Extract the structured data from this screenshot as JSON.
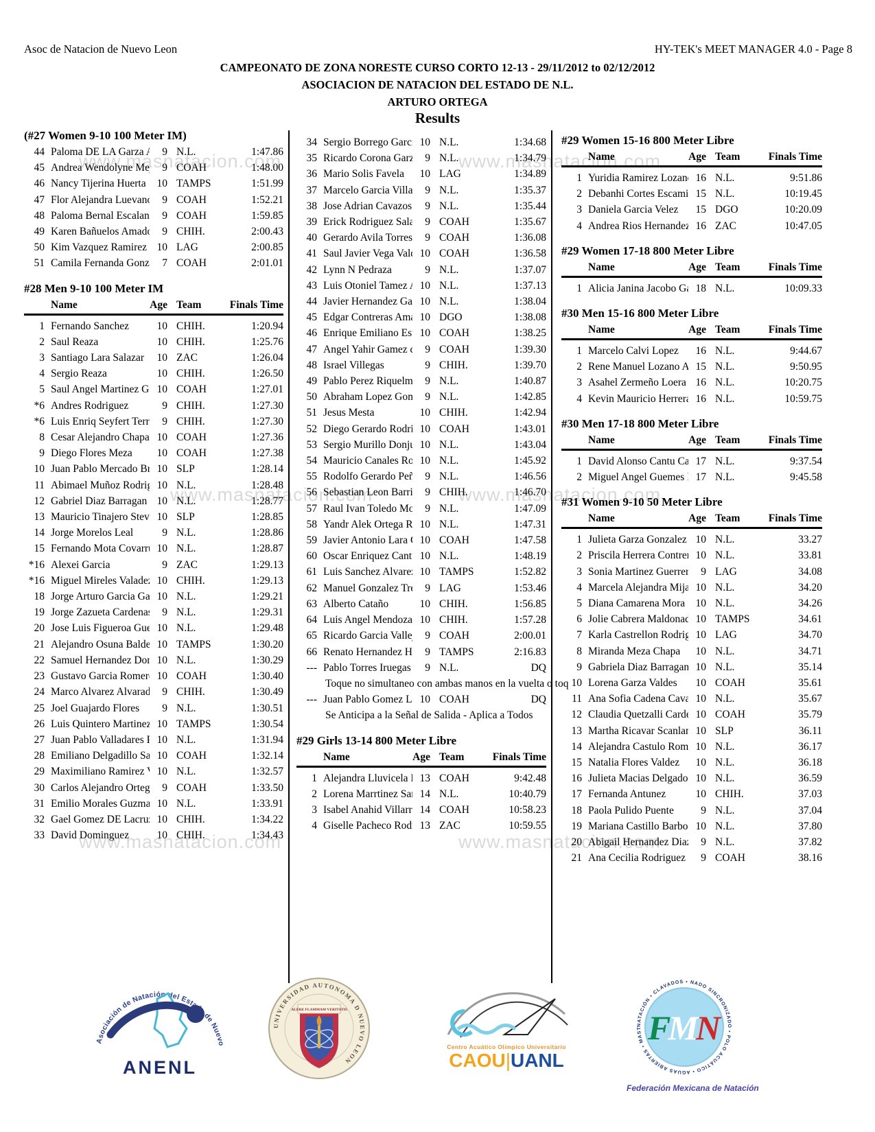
{
  "page": {
    "header_left": "Asoc de Natacion de Nuevo Leon",
    "header_right": "HY-TEK's MEET MANAGER 4.0 - Page 8",
    "title1": "CAMPEONATO DE ZONA NORESTE CURSO CORTO 12-13 - 29/11/2012 to 02/12/2012",
    "title2": "ASOCIACION DE NATACION DEL ESTADO DE N.L.",
    "title3": "ARTURO ORTEGA",
    "results_label": "Results"
  },
  "watermark": "www.masnatacion.com",
  "table_headers": {
    "name": "Name",
    "age": "Age",
    "team": "Team",
    "finals": "Finals Time"
  },
  "col1": {
    "event27_title": "(#27 Women 9-10 100 Meter IM)",
    "event27_rows": [
      [
        "44",
        "Paloma DE LA Garza Ag",
        "9",
        "N.L.",
        "1:47.86"
      ],
      [
        "45",
        "Andrea Wendolyne Mejo",
        "9",
        "COAH",
        "1:48.00"
      ],
      [
        "46",
        "Nancy Tijerina Huerta",
        "10",
        "TAMPS",
        "1:51.99"
      ],
      [
        "47",
        "Flor Alejandra Luevano F",
        "9",
        "COAH",
        "1:52.21"
      ],
      [
        "48",
        "Paloma Bernal Escalante",
        "9",
        "COAH",
        "1:59.85"
      ],
      [
        "49",
        "Karen Bañuelos Amador",
        "9",
        "CHIH.",
        "2:00.43"
      ],
      [
        "50",
        "Kim Vazquez Ramirez",
        "10",
        "LAG",
        "2:00.85"
      ],
      [
        "51",
        "Camila Fernanda Gonzale",
        "7",
        "COAH",
        "2:01.01"
      ]
    ],
    "event28_title": "#28 Men 9-10 100 Meter IM",
    "event28_rows": [
      [
        "1",
        "Fernando Sanchez",
        "10",
        "CHIH.",
        "1:20.94"
      ],
      [
        "2",
        "Saul Reaza",
        "10",
        "CHIH.",
        "1:25.76"
      ],
      [
        "3",
        "Santiago Lara Salazar",
        "10",
        "ZAC",
        "1:26.04"
      ],
      [
        "4",
        "Sergio Reaza",
        "10",
        "CHIH.",
        "1:26.50"
      ],
      [
        "5",
        "Saul Angel Martinez Gue",
        "10",
        "COAH",
        "1:27.01"
      ],
      [
        "*6",
        "Andres Rodriguez",
        "9",
        "CHIH.",
        "1:27.30"
      ],
      [
        "*6",
        "Luis Enriq Seyfert Terraz",
        "9",
        "CHIH.",
        "1:27.30"
      ],
      [
        "8",
        "Cesar Alejandro Chapa B",
        "10",
        "COAH",
        "1:27.36"
      ],
      [
        "9",
        "Diego Flores Meza",
        "10",
        "COAH",
        "1:27.38"
      ],
      [
        "10",
        "Juan Pablo Mercado Brio",
        "10",
        "SLP",
        "1:28.14"
      ],
      [
        "11",
        "Abimael Muñoz Rodrigu",
        "10",
        "N.L.",
        "1:28.48"
      ],
      [
        "12",
        "Gabriel Diaz Barragan",
        "10",
        "N.L.",
        "1:28.77"
      ],
      [
        "13",
        "Mauricio Tinajero Steven",
        "10",
        "SLP",
        "1:28.85"
      ],
      [
        "14",
        "Jorge Morelos Leal",
        "9",
        "N.L.",
        "1:28.86"
      ],
      [
        "15",
        "Fernando Mota Covarrub",
        "10",
        "N.L.",
        "1:28.87"
      ],
      [
        "*16",
        "Alexei Garcia",
        "9",
        "ZAC",
        "1:29.13"
      ],
      [
        "*16",
        "Miguel Mireles Valadez",
        "10",
        "CHIH.",
        "1:29.13"
      ],
      [
        "18",
        "Jorge Arturo Garcia Gaun",
        "10",
        "N.L.",
        "1:29.21"
      ],
      [
        "19",
        "Jorge Zazueta Cardenas",
        "9",
        "N.L.",
        "1:29.31"
      ],
      [
        "20",
        "Jose Luis Figueroa Gueva",
        "10",
        "N.L.",
        "1:29.48"
      ],
      [
        "21",
        "Alejandro Osuna Baldera",
        "10",
        "TAMPS",
        "1:30.20"
      ],
      [
        "22",
        "Samuel Hernandez Doran",
        "10",
        "N.L.",
        "1:30.29"
      ],
      [
        "23",
        "Gustavo Garcia Romero",
        "10",
        "COAH",
        "1:30.40"
      ],
      [
        "24",
        "Marco Alvarez Alvarado",
        "9",
        "CHIH.",
        "1:30.49"
      ],
      [
        "25",
        "Joel Guajardo Flores",
        "9",
        "N.L.",
        "1:30.51"
      ],
      [
        "26",
        "Luis Quintero Martinez",
        "10",
        "TAMPS",
        "1:30.54"
      ],
      [
        "27",
        "Juan Pablo Valladares Piñ",
        "10",
        "N.L.",
        "1:31.94"
      ],
      [
        "28",
        "Emiliano Delgadillo Sala",
        "10",
        "COAH",
        "1:32.14"
      ],
      [
        "29",
        "Maximiliano Ramirez Vil",
        "10",
        "N.L.",
        "1:32.57"
      ],
      [
        "30",
        "Carlos Alejandro Ortega",
        "9",
        "COAH",
        "1:33.50"
      ],
      [
        "31",
        "Emilio Morales Guzman",
        "10",
        "N.L.",
        "1:33.91"
      ],
      [
        "32",
        "Gael Gomez DE Lacruz",
        "10",
        "CHIH.",
        "1:34.22"
      ],
      [
        "33",
        "David Dominguez",
        "10",
        "CHIH.",
        "1:34.43"
      ]
    ]
  },
  "col2": {
    "event28_cont_rows": [
      [
        "34",
        "Sergio Borrego Garcia",
        "10",
        "N.L.",
        "1:34.68"
      ],
      [
        "35",
        "Ricardo Corona Garza",
        "9",
        "N.L.",
        "1:34.79"
      ],
      [
        "36",
        "Mario Solis Favela",
        "10",
        "LAG",
        "1:34.89"
      ],
      [
        "37",
        "Marcelo Garcia Villanuev",
        "9",
        "N.L.",
        "1:35.37"
      ],
      [
        "38",
        "Jose Adrian Cavazos Lop",
        "9",
        "N.L.",
        "1:35.44"
      ],
      [
        "39",
        "Erick Rodriguez Salazar",
        "9",
        "COAH",
        "1:35.67"
      ],
      [
        "40",
        "Gerardo Avila Torres",
        "9",
        "COAH",
        "1:36.08"
      ],
      [
        "41",
        "Saul Javier Vega Valdes",
        "10",
        "COAH",
        "1:36.58"
      ],
      [
        "42",
        "Lynn N Pedraza",
        "9",
        "N.L.",
        "1:37.07"
      ],
      [
        "43",
        "Luis Otoniel Tamez Alon",
        "10",
        "N.L.",
        "1:37.13"
      ],
      [
        "44",
        "Javier Hernandez Garza",
        "10",
        "N.L.",
        "1:38.04"
      ],
      [
        "45",
        "Edgar Contreras Amador",
        "10",
        "DGO",
        "1:38.08"
      ],
      [
        "46",
        "Enrique Emiliano Estrada",
        "10",
        "COAH",
        "1:38.25"
      ],
      [
        "47",
        "Angel Yahir Gamez de la",
        "9",
        "COAH",
        "1:39.30"
      ],
      [
        "48",
        "Israel Villegas",
        "9",
        "CHIH.",
        "1:39.70"
      ],
      [
        "49",
        "Pablo Perez Riquelmes",
        "9",
        "N.L.",
        "1:40.87"
      ],
      [
        "50",
        "Abraham Lopez Gomez",
        "9",
        "N.L.",
        "1:42.85"
      ],
      [
        "51",
        "Jesus Mesta",
        "10",
        "CHIH.",
        "1:42.94"
      ],
      [
        "52",
        "Diego Gerardo Rodriguez",
        "10",
        "COAH",
        "1:43.01"
      ],
      [
        "53",
        "Sergio Murillo Donjuan",
        "10",
        "N.L.",
        "1:43.04"
      ],
      [
        "54",
        "Mauricio Canales Rodrig",
        "10",
        "N.L.",
        "1:45.92"
      ],
      [
        "55",
        "Rodolfo Gerardo Peña Er",
        "9",
        "N.L.",
        "1:46.56"
      ],
      [
        "56",
        "Sebastian Leon Barrios",
        "9",
        "CHIH.",
        "1:46.70"
      ],
      [
        "57",
        "Raul Ivan Toledo Molina",
        "9",
        "N.L.",
        "1:47.09"
      ],
      [
        "58",
        "Yandr Alek Ortega Rosal",
        "10",
        "N.L.",
        "1:47.31"
      ],
      [
        "59",
        "Javier Antonio Lara Cade",
        "10",
        "COAH",
        "1:47.58"
      ],
      [
        "60",
        "Oscar Enriquez Cantu",
        "10",
        "N.L.",
        "1:48.19"
      ],
      [
        "61",
        "Luis Sanchez Alvarez",
        "10",
        "TAMPS",
        "1:52.82"
      ],
      [
        "62",
        "Manuel Gonzalez Trejo",
        "9",
        "LAG",
        "1:53.46"
      ],
      [
        "63",
        "Alberto Cataño",
        "10",
        "CHIH.",
        "1:56.85"
      ],
      [
        "64",
        "Luis Angel Mendoza Vaz",
        "10",
        "CHIH.",
        "1:57.28"
      ],
      [
        "65",
        "Ricardo Garcia Vallejo",
        "9",
        "COAH",
        "2:00.01"
      ],
      [
        "66",
        "Renato Hernandez Herrer",
        "9",
        "TAMPS",
        "2:16.83"
      ],
      [
        "---",
        "Pablo Torres Iruegas",
        "9",
        "N.L.",
        "DQ",
        "Toque no simultaneo con ambas manos en la vuelta o toq"
      ],
      [
        "---",
        "Juan Pablo Gomez Lueva",
        "10",
        "COAH",
        "DQ",
        "Se Anticipa a la Señal de Salida - Aplica a Todos"
      ]
    ],
    "event29g_title": "#29 Girls 13-14 800 Meter Libre",
    "event29g_rows": [
      [
        "1",
        "Alejandra Lluvicela Reye",
        "13",
        "COAH",
        "9:42.48"
      ],
      [
        "2",
        "Lorena Marrtinez Sanche",
        "14",
        "N.L.",
        "10:40.79"
      ],
      [
        "3",
        "Isabel Anahid Villarreal A",
        "14",
        "COAH",
        "10:58.23"
      ],
      [
        "4",
        "Giselle Pacheco Rodrigue",
        "13",
        "ZAC",
        "10:59.55"
      ]
    ]
  },
  "col3": {
    "events": [
      {
        "title": "#29 Women 15-16 800 Meter Libre",
        "rows": [
          [
            "1",
            "Yuridia Ramirez Lozano",
            "16",
            "N.L.",
            "9:51.86"
          ],
          [
            "2",
            "Debanhi Cortes Escamill",
            "15",
            "N.L.",
            "10:19.45"
          ],
          [
            "3",
            "Daniela Garcia Velez",
            "15",
            "DGO",
            "10:20.09"
          ],
          [
            "4",
            "Andrea Rios Hernandez",
            "16",
            "ZAC",
            "10:47.05"
          ]
        ]
      },
      {
        "title": "#29 Women 17-18 800 Meter Libre",
        "rows": [
          [
            "1",
            "Alicia Janina Jacobo Gar",
            "18",
            "N.L.",
            "10:09.33"
          ]
        ]
      },
      {
        "title": "#30 Men 15-16 800 Meter Libre",
        "rows": [
          [
            "1",
            "Marcelo Calvi Lopez",
            "16",
            "N.L.",
            "9:44.67"
          ],
          [
            "2",
            "Rene Manuel Lozano Ac",
            "15",
            "N.L.",
            "9:50.95"
          ],
          [
            "3",
            "Asahel Zermeño Loera",
            "16",
            "N.L.",
            "10:20.75"
          ],
          [
            "4",
            "Kevin Mauricio Herrera C",
            "16",
            "N.L.",
            "10:59.75"
          ]
        ]
      },
      {
        "title": "#30 Men 17-18 800 Meter Libre",
        "rows": [
          [
            "1",
            "David Alonso Cantu Cab",
            "17",
            "N.L.",
            "9:37.54"
          ],
          [
            "2",
            "Miguel Angel Guemes N",
            "17",
            "N.L.",
            "9:45.58"
          ]
        ]
      },
      {
        "title": "#31 Women 9-10 50 Meter Libre",
        "rows": [
          [
            "1",
            "Julieta Garza Gonzalez",
            "10",
            "N.L.",
            "33.27"
          ],
          [
            "2",
            "Priscila Herrera Contrera",
            "10",
            "N.L.",
            "33.81"
          ],
          [
            "3",
            "Sonia Martinez Guerrero",
            "9",
            "LAG",
            "34.08"
          ],
          [
            "4",
            "Marcela Alejandra Mijare",
            "10",
            "N.L.",
            "34.20"
          ],
          [
            "5",
            "Diana Camarena Mora",
            "10",
            "N.L.",
            "34.26"
          ],
          [
            "6",
            "Jolie Cabrera Maldonado",
            "10",
            "TAMPS",
            "34.61"
          ],
          [
            "7",
            "Karla Castrellon Rodrigu",
            "10",
            "LAG",
            "34.70"
          ],
          [
            "8",
            "Miranda Meza Chapa",
            "10",
            "N.L.",
            "34.71"
          ],
          [
            "9",
            "Gabriela Diaz Barragan",
            "10",
            "N.L.",
            "35.14"
          ],
          [
            "10",
            "Lorena Garza Valdes",
            "10",
            "COAH",
            "35.61"
          ],
          [
            "11",
            "Ana Sofia Cadena Cavaz",
            "10",
            "N.L.",
            "35.67"
          ],
          [
            "12",
            "Claudia Quetzalli Carden",
            "10",
            "COAH",
            "35.79"
          ],
          [
            "13",
            "Martha Ricavar Scanlan",
            "10",
            "SLP",
            "36.11"
          ],
          [
            "14",
            "Alejandra Castulo Romer",
            "10",
            "N.L.",
            "36.17"
          ],
          [
            "15",
            "Natalia Flores Valdez",
            "10",
            "N.L.",
            "36.18"
          ],
          [
            "16",
            "Julieta Macias Delgado",
            "10",
            "N.L.",
            "36.59"
          ],
          [
            "17",
            "Fernanda Antunez",
            "10",
            "CHIH.",
            "37.03"
          ],
          [
            "18",
            "Paola Pulido Puente",
            "9",
            "N.L.",
            "37.04"
          ],
          [
            "19",
            "Mariana Castillo Barbosa",
            "10",
            "N.L.",
            "37.80"
          ],
          [
            "20",
            "Abigail Hernandez Diaz",
            "9",
            "N.L.",
            "37.82"
          ],
          [
            "21",
            "Ana Cecilia Rodriguez Q",
            "9",
            "COAH",
            "38.16"
          ]
        ]
      }
    ]
  },
  "logos": {
    "anenl": {
      "arc_text": "Asociación de Natación del Estado de Nuevo León",
      "label": "ANENL"
    },
    "uanl": {
      "ring_text": "UNIVERSIDAD AUTONOMA D NUEVO LEON",
      "banner": "ALERE FLAMMAM VERITATIS"
    },
    "caou": {
      "line1": "Centro Acuático Olímpico Universitario",
      "left": "CAOU",
      "divider": "|",
      "right": "UANL"
    },
    "fmn": {
      "ring_text": "NATACIÓN • CLAVADOS • NADO SINCRONIZADO • POLO ACUÁTICO • AGUAS ABIERTAS • MASTERS •",
      "f": "F",
      "m": "M",
      "n": "N",
      "caption": "Federación Mexicana de Natación"
    }
  }
}
